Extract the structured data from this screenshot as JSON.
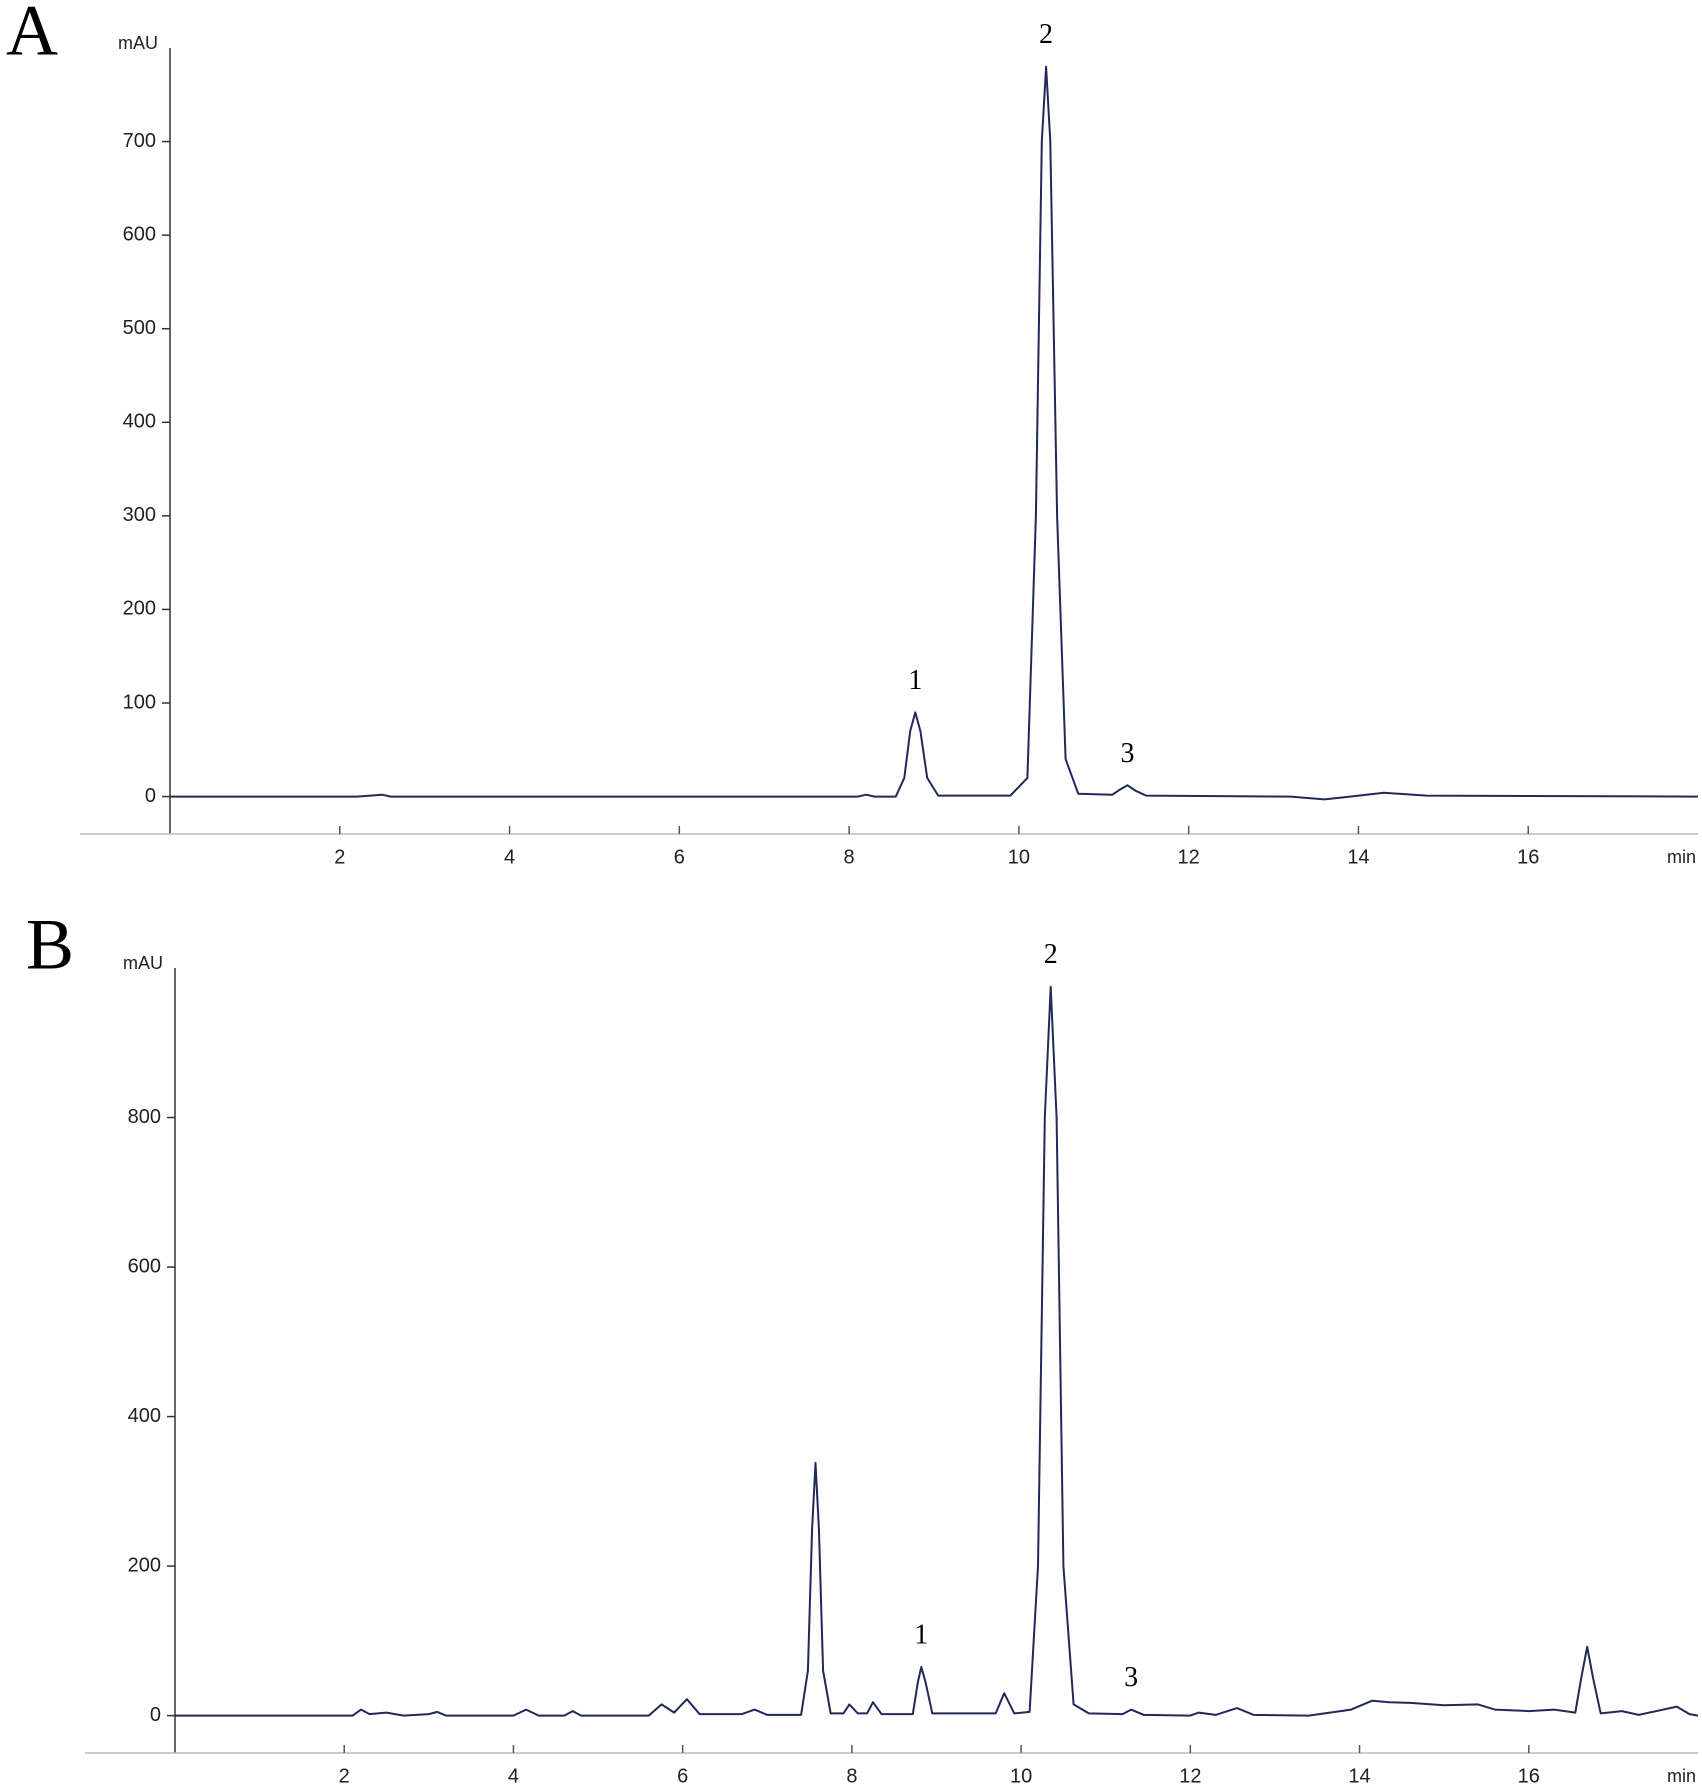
{
  "chart_data": [
    {
      "type": "line",
      "panel_label": "A",
      "ylabel": "mAU",
      "xlabel": "min",
      "color": "#1f2a5a",
      "xlim": [
        0,
        18
      ],
      "xticks": [
        2,
        4,
        6,
        8,
        10,
        12,
        14,
        16
      ],
      "ylim": [
        -40,
        800
      ],
      "yticks": [
        0,
        100,
        200,
        300,
        400,
        500,
        600,
        700
      ],
      "x": [
        0,
        2.2,
        2.5,
        2.6,
        8.1,
        8.2,
        8.3,
        8.55,
        8.65,
        8.72,
        8.78,
        8.84,
        8.92,
        9.05,
        9.9,
        10.1,
        10.2,
        10.27,
        10.32,
        10.37,
        10.45,
        10.55,
        10.7,
        11.1,
        11.2,
        11.28,
        11.38,
        11.5,
        13.2,
        13.6,
        13.9,
        14.3,
        14.8,
        18
      ],
      "values": [
        0,
        0,
        2,
        0,
        0,
        2,
        0,
        0,
        20,
        70,
        90,
        70,
        20,
        1,
        1,
        20,
        300,
        700,
        780,
        700,
        300,
        40,
        3,
        2,
        8,
        12,
        6,
        1,
        0,
        -3,
        0,
        4,
        1,
        0
      ],
      "annotations": [
        {
          "text": "1",
          "x": 8.78,
          "y": 90
        },
        {
          "text": "2",
          "x": 10.32,
          "y": 780
        },
        {
          "text": "3",
          "x": 11.28,
          "y": 12
        }
      ]
    },
    {
      "type": "line",
      "panel_label": "B",
      "ylabel": "mAU",
      "xlabel": "min",
      "color": "#1f2a5a",
      "xlim": [
        0,
        18
      ],
      "xticks": [
        2,
        4,
        6,
        8,
        10,
        12,
        14,
        16
      ],
      "ylim": [
        -50,
        1000
      ],
      "yticks": [
        0,
        200,
        400,
        600,
        800
      ],
      "x": [
        0,
        2.1,
        2.2,
        2.3,
        2.5,
        2.7,
        3.0,
        3.1,
        3.2,
        4.0,
        4.15,
        4.3,
        4.6,
        4.7,
        4.8,
        5.6,
        5.75,
        5.9,
        6.05,
        6.2,
        6.7,
        6.85,
        7.0,
        7.4,
        7.48,
        7.53,
        7.57,
        7.61,
        7.66,
        7.75,
        7.9,
        7.97,
        8.07,
        8.18,
        8.25,
        8.35,
        8.72,
        8.78,
        8.82,
        8.87,
        8.95,
        9.7,
        9.8,
        9.92,
        10.1,
        10.2,
        10.28,
        10.35,
        10.42,
        10.5,
        10.62,
        10.8,
        11.2,
        11.3,
        11.45,
        12.0,
        12.1,
        12.3,
        12.55,
        12.75,
        13.4,
        13.9,
        14.15,
        14.35,
        14.6,
        15.0,
        15.4,
        15.6,
        16.0,
        16.3,
        16.55,
        16.62,
        16.69,
        16.76,
        16.85,
        17.1,
        17.3,
        17.75,
        17.9,
        18
      ],
      "values": [
        0,
        0,
        8,
        2,
        4,
        0,
        2,
        5,
        0,
        0,
        8,
        0,
        0,
        6,
        0,
        0,
        15,
        4,
        22,
        2,
        2,
        8,
        1,
        1,
        60,
        250,
        338,
        250,
        60,
        3,
        3,
        15,
        3,
        3,
        18,
        2,
        2,
        45,
        65,
        45,
        3,
        3,
        30,
        3,
        5,
        200,
        800,
        975,
        800,
        200,
        15,
        3,
        2,
        8,
        1,
        0,
        4,
        1,
        10,
        1,
        0,
        8,
        20,
        18,
        17,
        14,
        15,
        8,
        6,
        8,
        4,
        50,
        92,
        50,
        3,
        6,
        1,
        12,
        2,
        0
      ],
      "annotations": [
        {
          "text": "1",
          "x": 8.82,
          "y": 65
        },
        {
          "text": "2",
          "x": 10.35,
          "y": 975
        },
        {
          "text": "3",
          "x": 11.3,
          "y": 8
        }
      ]
    }
  ]
}
